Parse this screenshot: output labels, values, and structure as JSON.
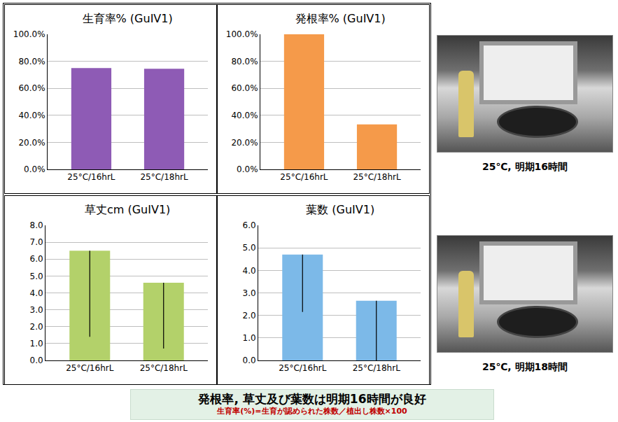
{
  "chart_data": [
    {
      "type": "bar",
      "title": "生育率% (GuIV1)",
      "categories": [
        "25°C/16hrL",
        "25°C/18hrL"
      ],
      "values": [
        75,
        74.5
      ],
      "color": "#8e5bb5",
      "ylim": [
        0,
        100
      ],
      "yticks": [
        {
          "value": 0,
          "label": "0.0%"
        },
        {
          "value": 20,
          "label": "20.0%"
        },
        {
          "value": 40,
          "label": "40.0%"
        },
        {
          "value": 60,
          "label": "60.0%"
        },
        {
          "value": 80,
          "label": "80.0%"
        },
        {
          "value": 100,
          "label": "100.0%"
        }
      ],
      "grid": true
    },
    {
      "type": "bar",
      "title": "発根率% (GuIV1)",
      "categories": [
        "25°C/16hrL",
        "25°C/18hrL"
      ],
      "values": [
        100,
        33.3
      ],
      "color": "#f59a4a",
      "ylim": [
        0,
        100
      ],
      "yticks": [
        {
          "value": 0,
          "label": "0.0%"
        },
        {
          "value": 20,
          "label": "20.0%"
        },
        {
          "value": 40,
          "label": "40.0%"
        },
        {
          "value": 60,
          "label": "60.0%"
        },
        {
          "value": 80,
          "label": "80.0%"
        },
        {
          "value": 100,
          "label": "100.0%"
        }
      ],
      "grid": true
    },
    {
      "type": "bar",
      "title": "草丈cm (GuIV1)",
      "categories": [
        "25°C/16hrL",
        "25°C/18hrL"
      ],
      "values": [
        6.5,
        4.6
      ],
      "error_minus": [
        5.1,
        3.9
      ],
      "color": "#b3d16a",
      "ylim": [
        0,
        8
      ],
      "yticks": [
        {
          "value": 0,
          "label": "0.0"
        },
        {
          "value": 1,
          "label": "1.0"
        },
        {
          "value": 2,
          "label": "2.0"
        },
        {
          "value": 3,
          "label": "3.0"
        },
        {
          "value": 4,
          "label": "4.0"
        },
        {
          "value": 5,
          "label": "5.0"
        },
        {
          "value": 6,
          "label": "6.0"
        },
        {
          "value": 7,
          "label": "7.0"
        },
        {
          "value": 8,
          "label": "8.0"
        }
      ],
      "grid": true
    },
    {
      "type": "bar",
      "title": "葉数 (GuIV1)",
      "categories": [
        "25°C/16hrL",
        "25°C/18hrL"
      ],
      "values": [
        4.7,
        2.65
      ],
      "error_minus": [
        2.55,
        2.65
      ],
      "color": "#7cb9e8",
      "ylim": [
        0,
        6
      ],
      "yticks": [
        {
          "value": 0,
          "label": "0.0"
        },
        {
          "value": 1,
          "label": "1.0"
        },
        {
          "value": 2,
          "label": "2.0"
        },
        {
          "value": 3,
          "label": "3.0"
        },
        {
          "value": 4,
          "label": "4.0"
        },
        {
          "value": 5,
          "label": "5.0"
        },
        {
          "value": 6,
          "label": "6.0"
        }
      ],
      "grid": true
    }
  ],
  "photos": [
    {
      "caption": "25℃, 明期16時間"
    },
    {
      "caption": "25℃, 明期18時間"
    }
  ],
  "banner": {
    "text": "発根率, 草丈及び葉数は明期16時間が良好",
    "note": "生育率(%)=生育が認められた株数／植出し株数×100"
  }
}
